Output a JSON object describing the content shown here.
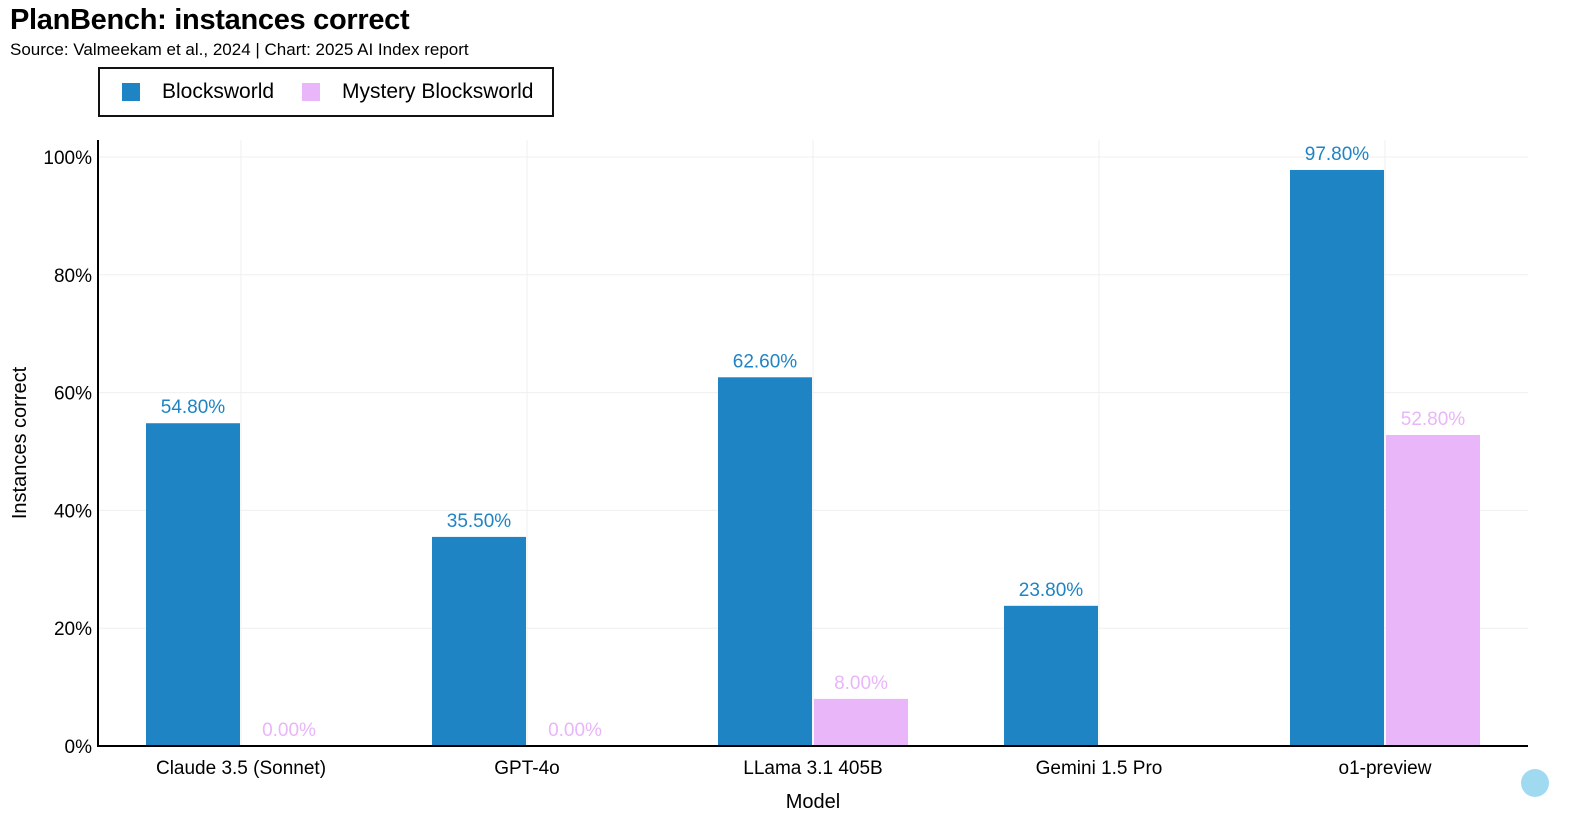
{
  "chart_data": {
    "type": "bar",
    "title": "PlanBench: instances correct",
    "subtitle": "Source: Valmeekam et al., 2024 | Chart: 2025 AI Index report",
    "xlabel": "Model",
    "ylabel": "Instances correct",
    "ylim": [
      0,
      100
    ],
    "yticks": [
      0,
      20,
      40,
      60,
      80,
      100
    ],
    "ytick_labels": [
      "0%",
      "20%",
      "40%",
      "60%",
      "80%",
      "100%"
    ],
    "grid": true,
    "legend_position": "top-left",
    "categories": [
      "Claude 3.5 (Sonnet)",
      "GPT-4o",
      "LLama 3.1 405B",
      "Gemini 1.5 Pro",
      "o1-preview"
    ],
    "series": [
      {
        "name": "Blocksworld",
        "color": "#1f84c3",
        "values": [
          54.8,
          35.5,
          62.6,
          23.8,
          97.8
        ],
        "labels": [
          "54.80%",
          "35.50%",
          "62.60%",
          "23.80%",
          "97.80%"
        ]
      },
      {
        "name": "Mystery Blocksworld",
        "color": "#e8b6f9",
        "values": [
          0,
          0,
          8.0,
          null,
          52.8
        ],
        "labels": [
          "0.00%",
          "0.00%",
          "8.00%",
          null,
          "52.80%"
        ]
      }
    ]
  }
}
